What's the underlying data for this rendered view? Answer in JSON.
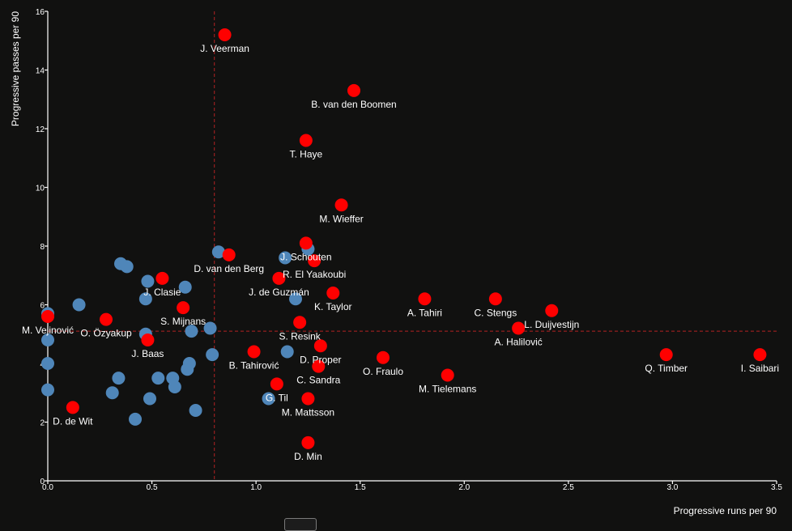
{
  "colors": {
    "background": "#111110",
    "highlight": "#ff0000",
    "other": "#4f86b9",
    "axis": "#ffffff",
    "average_line": "#b22222"
  },
  "chart_data": {
    "type": "scatter",
    "xlabel": "Progressive runs per 90",
    "ylabel": "Progressive passes per 90",
    "xlim": [
      0,
      3.5
    ],
    "ylim": [
      0,
      16
    ],
    "xticks": [
      0,
      0.5,
      1.0,
      1.5,
      2.0,
      2.5,
      3.0,
      3.5
    ],
    "xtick_labels": [
      "0.0",
      "0.5",
      "1.0",
      "1.5",
      "2.0",
      "2.5",
      "3.0",
      "3.5"
    ],
    "yticks": [
      0,
      2,
      4,
      6,
      8,
      10,
      12,
      14,
      16
    ],
    "xtick_label_yticks": [
      "0",
      "2",
      "4",
      "6",
      "8",
      "10",
      "12",
      "14",
      "16"
    ],
    "average_x": 0.8,
    "average_y": 5.1,
    "labeled_players": [
      {
        "name": "J. Veerman",
        "x": 0.85,
        "y": 15.2
      },
      {
        "name": "B. van den Boomen",
        "x": 1.47,
        "y": 13.3
      },
      {
        "name": "T. Haye",
        "x": 1.24,
        "y": 11.6
      },
      {
        "name": "M. Wieffer",
        "x": 1.41,
        "y": 9.4
      },
      {
        "name": "J. Schouten",
        "x": 1.24,
        "y": 8.1
      },
      {
        "name": "D. van den Berg",
        "x": 0.87,
        "y": 7.7
      },
      {
        "name": "R. El Yaakoubi",
        "x": 1.28,
        "y": 7.5
      },
      {
        "name": "J. Clasie",
        "x": 0.55,
        "y": 6.9
      },
      {
        "name": "J. de Guzmán",
        "x": 1.11,
        "y": 6.9
      },
      {
        "name": "K. Taylor",
        "x": 1.37,
        "y": 6.4
      },
      {
        "name": "A. Tahiri",
        "x": 1.81,
        "y": 6.2
      },
      {
        "name": "C. Stengs",
        "x": 2.15,
        "y": 6.2
      },
      {
        "name": "L. Duijvestijn",
        "x": 2.42,
        "y": 5.8
      },
      {
        "name": "S. Mijnans",
        "x": 0.65,
        "y": 5.9
      },
      {
        "name": "M. Vejinović",
        "x": 0.0,
        "y": 5.6
      },
      {
        "name": "O. Özyakup",
        "x": 0.28,
        "y": 5.5
      },
      {
        "name": "S. Resink",
        "x": 1.21,
        "y": 5.4
      },
      {
        "name": "A. Halilović",
        "x": 2.26,
        "y": 5.2
      },
      {
        "name": "J. Baas",
        "x": 0.48,
        "y": 4.8
      },
      {
        "name": "D. Proper",
        "x": 1.31,
        "y": 4.6
      },
      {
        "name": "B. Tahirović",
        "x": 0.99,
        "y": 4.4
      },
      {
        "name": "Q. Timber",
        "x": 2.97,
        "y": 4.3
      },
      {
        "name": "I. Saibari",
        "x": 3.42,
        "y": 4.3
      },
      {
        "name": "O. Fraulo",
        "x": 1.61,
        "y": 4.2
      },
      {
        "name": "C. Sandra",
        "x": 1.3,
        "y": 3.9
      },
      {
        "name": "M. Tielemans",
        "x": 1.92,
        "y": 3.6
      },
      {
        "name": "G. Til",
        "x": 1.1,
        "y": 3.3
      },
      {
        "name": "M. Mattsson",
        "x": 1.25,
        "y": 2.8
      },
      {
        "name": "D. de Wit",
        "x": 0.12,
        "y": 2.5
      },
      {
        "name": "D. Min",
        "x": 1.25,
        "y": 1.3
      }
    ],
    "other_players": [
      {
        "x": 0.82,
        "y": 7.8
      },
      {
        "x": 1.14,
        "y": 7.6
      },
      {
        "x": 1.25,
        "y": 7.9
      },
      {
        "x": 0.35,
        "y": 7.4
      },
      {
        "x": 0.38,
        "y": 7.3
      },
      {
        "x": 0.48,
        "y": 6.8
      },
      {
        "x": 0.66,
        "y": 6.6
      },
      {
        "x": 0.47,
        "y": 6.2
      },
      {
        "x": 1.19,
        "y": 6.2
      },
      {
        "x": 0.15,
        "y": 6.0
      },
      {
        "x": 0.0,
        "y": 5.7
      },
      {
        "x": 0.78,
        "y": 5.2
      },
      {
        "x": 0.69,
        "y": 5.1
      },
      {
        "x": 0.47,
        "y": 5.0
      },
      {
        "x": 0.0,
        "y": 4.8
      },
      {
        "x": 0.79,
        "y": 4.3
      },
      {
        "x": 1.15,
        "y": 4.4
      },
      {
        "x": 0.0,
        "y": 4.0
      },
      {
        "x": 0.68,
        "y": 4.0
      },
      {
        "x": 0.67,
        "y": 3.8
      },
      {
        "x": 0.34,
        "y": 3.5
      },
      {
        "x": 0.53,
        "y": 3.5
      },
      {
        "x": 0.6,
        "y": 3.5
      },
      {
        "x": 0.61,
        "y": 3.2
      },
      {
        "x": 0.0,
        "y": 3.1
      },
      {
        "x": 0.31,
        "y": 3.0
      },
      {
        "x": 0.49,
        "y": 2.8
      },
      {
        "x": 1.06,
        "y": 2.8
      },
      {
        "x": 0.71,
        "y": 2.4
      },
      {
        "x": 0.42,
        "y": 2.1
      }
    ]
  }
}
